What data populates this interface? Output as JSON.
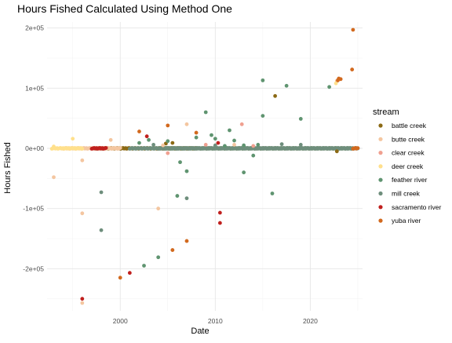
{
  "chart_data": {
    "type": "scatter",
    "title": "Hours Fished Calculated Using Method One",
    "xlabel": "Date",
    "ylabel": "Hours Fished",
    "xlim": [
      1992.3,
      2025.5
    ],
    "ylim": [
      -270000,
      210000
    ],
    "x_ticks": [
      2000,
      2010,
      2020
    ],
    "x_tick_labels": [
      "2000",
      "2010",
      "2020"
    ],
    "y_ticks": [
      200000,
      100000,
      0,
      -100000,
      -200000
    ],
    "y_tick_labels": [
      "2e+05",
      "1e+05",
      "0e+00",
      "-1e+05",
      "-2e+05"
    ],
    "grid": true,
    "legend": {
      "title": "stream",
      "position": "right"
    },
    "series": [
      {
        "name": "battle creek",
        "color": "#8b6914",
        "band": [
          1997.5,
          2008
        ],
        "x": [
          2016.3,
          2022.8,
          2004.8,
          2005.5
        ],
        "y": [
          87000,
          -5000,
          8000,
          9000
        ]
      },
      {
        "name": "butte creek",
        "color": "#f4c6a0",
        "band": [
          1994,
          2000
        ],
        "x": [
          1993,
          1996,
          1996,
          1996,
          2004,
          2004.5,
          2007,
          1999,
          2012,
          2022.8
        ],
        "y": [
          -48000,
          -20000,
          -108000,
          -257000,
          -100000,
          5000,
          40000,
          14000,
          6000,
          112000
        ]
      },
      {
        "name": "clear creek",
        "color": "#f0a090",
        "band": [
          2004,
          2024.5
        ],
        "x": [
          2012.8,
          2005,
          2009,
          2014
        ],
        "y": [
          40000,
          -8000,
          6000,
          4000
        ]
      },
      {
        "name": "deer creek",
        "color": "#ffe08c",
        "band": [
          1992.8,
          1996
        ],
        "x": [
          1995,
          2022.7,
          1993
        ],
        "y": [
          16000,
          108000,
          3000
        ]
      },
      {
        "name": "feather river",
        "color": "#5f9470",
        "band": [
          2004,
          2024.5
        ],
        "x": [
          2015,
          2017.5,
          2019,
          2022,
          2002.5,
          2003,
          2004,
          2006,
          2006.3,
          2007,
          2009,
          2009.6,
          2010,
          2011.5,
          2012,
          2013,
          2014,
          2015,
          2016,
          2013,
          2002,
          2005,
          2008,
          2011,
          2014.5
        ],
        "y": [
          113000,
          104000,
          49000,
          102000,
          -195000,
          14000,
          -181000,
          -79000,
          -23000,
          -38000,
          60000,
          22000,
          16000,
          30000,
          13000,
          -40000,
          -12000,
          54000,
          -75000,
          5000,
          9000,
          12000,
          18000,
          4000,
          6000
        ]
      },
      {
        "name": "mill creek",
        "color": "#6e8e7c",
        "band": [
          2001,
          2025
        ],
        "x": [
          1998,
          1998,
          2007,
          2003.5,
          2010,
          2017,
          2019
        ],
        "y": [
          -73000,
          -136000,
          -83000,
          6000,
          5000,
          7000,
          6000
        ]
      },
      {
        "name": "sacramento river",
        "color": "#c0201e",
        "band": [
          1997,
          1998.5
        ],
        "x": [
          1996,
          2001,
          2002.8,
          2010.5,
          2010.5,
          2010.3
        ],
        "y": [
          -250000,
          -207000,
          20000,
          -107000,
          -124000,
          9000
        ]
      },
      {
        "name": "yuba river",
        "color": "#d2691e",
        "band": [
          2024.5,
          2025
        ],
        "x": [
          2024.5,
          2024.4,
          2023,
          2023.2,
          2005,
          2005.5,
          2007,
          2000,
          2008,
          2022.9,
          2002
        ],
        "y": [
          197000,
          131000,
          116000,
          115000,
          38000,
          -169000,
          -154000,
          -215000,
          26000,
          113000,
          28000
        ]
      }
    ]
  }
}
